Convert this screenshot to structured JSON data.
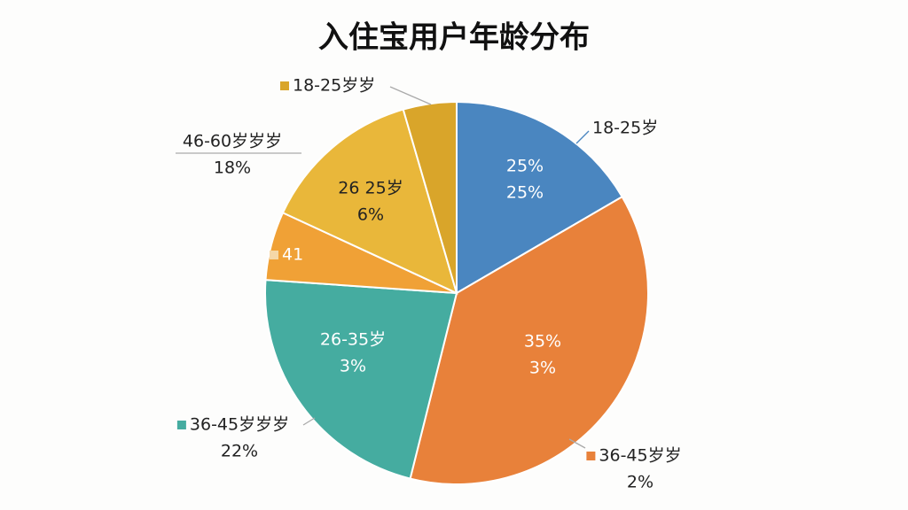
{
  "chart_data": {
    "type": "pie",
    "title": "入住宝用户年龄分布",
    "values": [
      16.6,
      37.3,
      22.2,
      5.8,
      13.6,
      4.5
    ],
    "colors": [
      "#4a86c0",
      "#e8813a",
      "#45aca0",
      "#f0a136",
      "#e9b73a",
      "#d9a52a"
    ],
    "annotations": [
      [
        "25%",
        "25%"
      ],
      [
        "35%",
        "3%"
      ],
      [
        "26-35岁",
        "3%"
      ],
      [
        "41"
      ],
      [
        "26 25岁",
        "6%"
      ],
      [
        "18-25岁"
      ],
      [
        "18-25岁岁"
      ],
      [
        "46-60岁岁岁",
        "18%"
      ],
      [
        "36-45岁岁岁",
        "22%"
      ],
      [
        "36-45岁岁",
        "2%"
      ]
    ]
  }
}
